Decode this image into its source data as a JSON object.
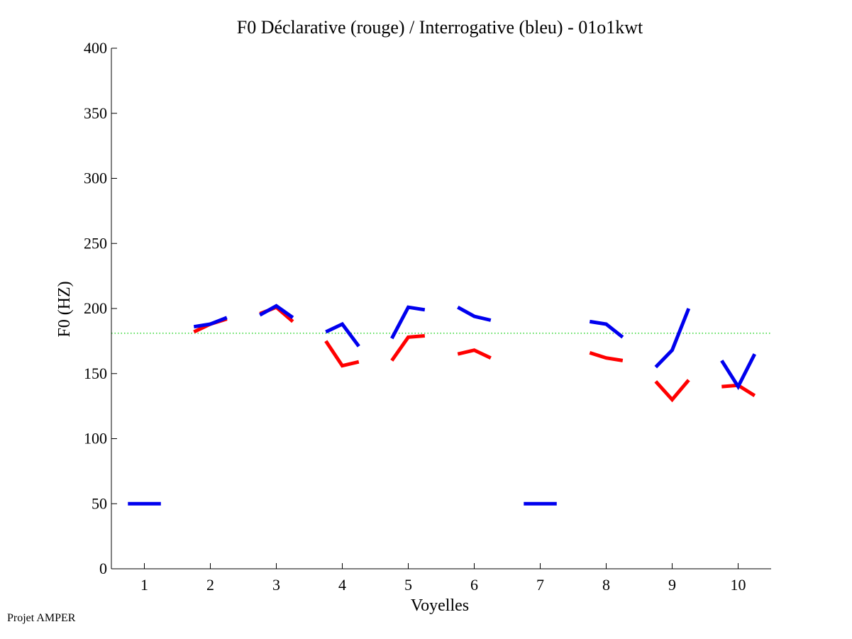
{
  "chart_data": {
    "type": "line",
    "title": "F0 Déclarative (rouge) / Interrogative (bleu) - 01o1kwt",
    "xlabel": "Voyelles",
    "ylabel": "F0 (HZ)",
    "ylim": [
      0,
      400
    ],
    "xlim": [
      0.5,
      10.5
    ],
    "yticks": [
      0,
      50,
      100,
      150,
      200,
      250,
      300,
      350,
      400
    ],
    "xticks": [
      1,
      2,
      3,
      4,
      5,
      6,
      7,
      8,
      9,
      10
    ],
    "reference_line": {
      "y": 181,
      "color": "#00cc00",
      "style": "dotted"
    },
    "series": [
      {
        "color": "#ff0000",
        "segments": [
          {
            "x": [
              1.75,
              2.0,
              2.25
            ],
            "y": [
              182,
              188,
              192
            ]
          },
          {
            "x": [
              2.75,
              3.0,
              3.25
            ],
            "y": [
              196,
              201,
              190
            ]
          },
          {
            "x": [
              3.75,
              4.0,
              4.25
            ],
            "y": [
              175,
              156,
              159
            ]
          },
          {
            "x": [
              4.75,
              5.0,
              5.25
            ],
            "y": [
              160,
              178,
              179
            ]
          },
          {
            "x": [
              5.75,
              6.0,
              6.25
            ],
            "y": [
              165,
              168,
              162
            ]
          },
          {
            "x": [
              7.75,
              8.0,
              8.25
            ],
            "y": [
              166,
              162,
              160
            ]
          },
          {
            "x": [
              8.75,
              9.0,
              9.25
            ],
            "y": [
              144,
              130,
              145
            ]
          },
          {
            "x": [
              9.75,
              10.0,
              10.25
            ],
            "y": [
              140,
              141,
              133
            ]
          }
        ]
      },
      {
        "color": "#0000ee",
        "segments": [
          {
            "x": [
              0.75,
              1.0,
              1.25
            ],
            "y": [
              50,
              50,
              50
            ]
          },
          {
            "x": [
              1.75,
              2.0,
              2.25
            ],
            "y": [
              186,
              188,
              193
            ]
          },
          {
            "x": [
              2.75,
              3.0,
              3.25
            ],
            "y": [
              195,
              202,
              193
            ]
          },
          {
            "x": [
              3.75,
              4.0,
              4.25
            ],
            "y": [
              182,
              188,
              171
            ]
          },
          {
            "x": [
              4.75,
              5.0,
              5.25
            ],
            "y": [
              177,
              201,
              199
            ]
          },
          {
            "x": [
              5.75,
              6.0,
              6.25
            ],
            "y": [
              201,
              194,
              191
            ]
          },
          {
            "x": [
              6.75,
              7.0,
              7.25
            ],
            "y": [
              50,
              50,
              50
            ]
          },
          {
            "x": [
              7.75,
              8.0,
              8.25
            ],
            "y": [
              190,
              188,
              178
            ]
          },
          {
            "x": [
              8.75,
              9.0,
              9.25
            ],
            "y": [
              155,
              168,
              200
            ]
          },
          {
            "x": [
              9.75,
              10.0,
              10.25
            ],
            "y": [
              160,
              140,
              165
            ]
          }
        ]
      }
    ]
  },
  "footer": "Projet AMPER"
}
